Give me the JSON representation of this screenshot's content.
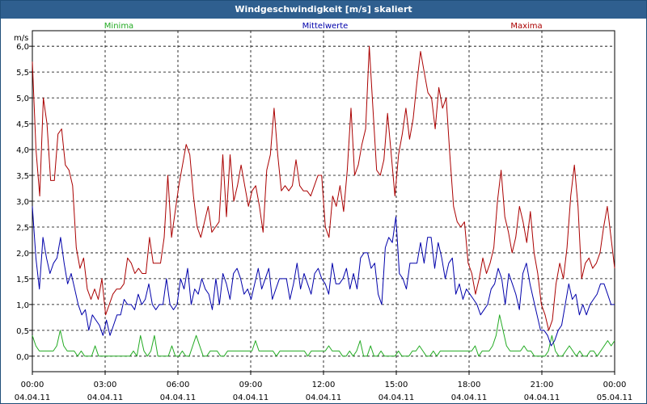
{
  "window": {
    "title": "Windgeschwindigkeit [m/s] skaliert"
  },
  "chart_data": {
    "type": "line",
    "title": "Windgeschwindigkeit [m/s] skaliert",
    "ylabel": "m/s",
    "ylim": [
      -0.3,
      6.3
    ],
    "xlim": [
      0,
      24
    ],
    "y_ticks": [
      "0,0",
      "0,5",
      "1,0",
      "1,5",
      "2,0",
      "2,5",
      "3,0",
      "3,5",
      "4,0",
      "4,5",
      "5,0",
      "5,5",
      "6,0"
    ],
    "x_ticks": [
      {
        "time": "00:00",
        "date": "04.04.11"
      },
      {
        "time": "03:00",
        "date": "04.04.11"
      },
      {
        "time": "06:00",
        "date": "04.04.11"
      },
      {
        "time": "09:00",
        "date": "04.04.11"
      },
      {
        "time": "12:00",
        "date": "04.04.11"
      },
      {
        "time": "15:00",
        "date": "04.04.11"
      },
      {
        "time": "18:00",
        "date": "04.04.11"
      },
      {
        "time": "21:00",
        "date": "04.04.11"
      },
      {
        "time": "00:00",
        "date": "05.04.11"
      }
    ],
    "grid": true,
    "x_step_hours": 0.16667,
    "series": [
      {
        "name": "Minima",
        "color": "#22aa22",
        "values": [
          0.4,
          0.2,
          0.1,
          0.1,
          0.1,
          0.1,
          0.1,
          0.2,
          0.5,
          0.2,
          0.1,
          0.1,
          0.1,
          0.0,
          0.1,
          0.0,
          0.0,
          0.0,
          0.2,
          0.0,
          0.0,
          0.0,
          0.0,
          0.0,
          0.0,
          0.0,
          0.0,
          0.0,
          0.0,
          0.1,
          0.0,
          0.4,
          0.1,
          0.0,
          0.1,
          0.4,
          0.0,
          0.0,
          0.0,
          0.0,
          0.2,
          0.0,
          0.0,
          0.1,
          0.0,
          0.0,
          0.2,
          0.4,
          0.2,
          0.0,
          0.0,
          0.1,
          0.1,
          0.1,
          0.0,
          0.0,
          0.1,
          0.1,
          0.1,
          0.1,
          0.1,
          0.1,
          0.1,
          0.1,
          0.3,
          0.1,
          0.1,
          0.1,
          0.1,
          0.1,
          0.0,
          0.1,
          0.1,
          0.1,
          0.1,
          0.1,
          0.1,
          0.1,
          0.1,
          0.0,
          0.1,
          0.1,
          0.1,
          0.1,
          0.1,
          0.2,
          0.1,
          0.1,
          0.1,
          0.0,
          0.0,
          0.1,
          0.0,
          0.1,
          0.3,
          0.0,
          0.0,
          0.2,
          0.0,
          0.0,
          0.1,
          0.0,
          0.0,
          0.0,
          0.0,
          0.1,
          0.0,
          0.0,
          0.0,
          0.1,
          0.1,
          0.2,
          0.1,
          0.0,
          0.0,
          0.1,
          0.0,
          0.1,
          0.1,
          0.1,
          0.1,
          0.1,
          0.1,
          0.1,
          0.1,
          0.1,
          0.1,
          0.2,
          0.0,
          0.1,
          0.1,
          0.1,
          0.2,
          0.4,
          0.8,
          0.5,
          0.2,
          0.1,
          0.1,
          0.1,
          0.1,
          0.2,
          0.1,
          0.1,
          0.0,
          0.0,
          0.0,
          0.0,
          0.1,
          0.4,
          0.1,
          0.0,
          0.0,
          0.1,
          0.2,
          0.1,
          0.0,
          0.1,
          0.0,
          0.0,
          0.1,
          0.1,
          0.0,
          0.1,
          0.2,
          0.3,
          0.2,
          0.3
        ]
      },
      {
        "name": "Mittelwerte",
        "color": "#0000aa",
        "values": [
          2.9,
          1.9,
          1.3,
          2.3,
          1.9,
          1.6,
          1.8,
          1.9,
          2.3,
          1.8,
          1.4,
          1.6,
          1.3,
          1.0,
          0.8,
          0.9,
          0.5,
          0.8,
          0.7,
          0.6,
          0.4,
          0.7,
          0.4,
          0.6,
          0.8,
          0.8,
          1.1,
          1.0,
          1.0,
          0.9,
          1.2,
          1.0,
          1.1,
          1.4,
          1.0,
          0.9,
          1.0,
          1.0,
          1.5,
          1.0,
          0.9,
          1.0,
          1.5,
          1.3,
          1.7,
          1.0,
          1.3,
          1.2,
          1.5,
          1.3,
          1.2,
          0.9,
          1.5,
          1.0,
          1.6,
          1.4,
          1.1,
          1.6,
          1.7,
          1.5,
          1.2,
          1.3,
          1.1,
          1.4,
          1.7,
          1.3,
          1.5,
          1.7,
          1.1,
          1.3,
          1.5,
          1.5,
          1.5,
          1.1,
          1.4,
          1.8,
          1.3,
          1.6,
          1.4,
          1.2,
          1.6,
          1.7,
          1.5,
          1.4,
          1.2,
          1.8,
          1.4,
          1.4,
          1.5,
          1.7,
          1.3,
          1.6,
          1.3,
          1.9,
          2.0,
          2.0,
          1.7,
          1.8,
          1.2,
          1.0,
          2.1,
          2.3,
          2.2,
          2.7,
          1.6,
          1.5,
          1.3,
          1.8,
          1.8,
          1.8,
          2.2,
          1.8,
          2.3,
          2.3,
          1.7,
          2.2,
          1.9,
          1.5,
          1.8,
          1.9,
          1.2,
          1.4,
          1.1,
          1.3,
          1.2,
          1.1,
          1.0,
          0.8,
          0.9,
          1.0,
          1.3,
          1.4,
          1.7,
          1.5,
          1.0,
          1.6,
          1.4,
          1.2,
          0.9,
          1.6,
          1.8,
          1.4,
          1.1,
          0.8,
          0.5,
          0.5,
          0.4,
          0.2,
          0.3,
          0.5,
          0.6,
          1.0,
          1.4,
          1.1,
          1.2,
          0.8,
          1.0,
          0.8,
          1.0,
          1.1,
          1.2,
          1.4,
          1.4,
          1.2,
          1.0,
          1.0
        ]
      },
      {
        "name": "Maxima",
        "color": "#aa0000",
        "values": [
          5.7,
          4.0,
          3.1,
          5.0,
          4.5,
          3.4,
          3.4,
          4.3,
          4.4,
          3.7,
          3.6,
          3.3,
          2.1,
          1.7,
          1.9,
          1.3,
          1.1,
          1.3,
          1.1,
          1.5,
          0.8,
          1.0,
          1.2,
          1.3,
          1.3,
          1.4,
          1.9,
          1.8,
          1.6,
          1.7,
          1.6,
          1.6,
          2.3,
          1.8,
          1.8,
          1.8,
          2.3,
          3.5,
          2.3,
          2.8,
          3.3,
          3.7,
          4.1,
          3.9,
          3.1,
          2.5,
          2.3,
          2.6,
          2.9,
          2.4,
          2.5,
          2.6,
          3.9,
          2.7,
          3.9,
          3.0,
          3.3,
          3.7,
          3.3,
          2.9,
          3.2,
          3.3,
          2.9,
          2.4,
          3.6,
          3.9,
          4.8,
          3.9,
          3.2,
          3.3,
          3.2,
          3.3,
          3.8,
          3.3,
          3.2,
          3.2,
          3.1,
          3.3,
          3.5,
          3.5,
          2.5,
          2.3,
          3.1,
          2.9,
          3.3,
          2.8,
          3.6,
          4.8,
          3.5,
          3.7,
          4.1,
          4.4,
          6.0,
          4.8,
          3.6,
          3.5,
          3.8,
          4.7,
          3.9,
          3.1,
          3.9,
          4.3,
          4.8,
          4.2,
          4.6,
          5.3,
          5.9,
          5.5,
          5.1,
          5.0,
          4.4,
          5.2,
          4.8,
          5.0,
          3.9,
          2.9,
          2.6,
          2.5,
          2.6,
          1.8,
          1.6,
          1.2,
          1.5,
          1.9,
          1.6,
          1.8,
          2.1,
          3.0,
          3.6,
          2.7,
          2.4,
          2.0,
          2.3,
          2.9,
          2.6,
          2.2,
          2.8,
          2.0,
          1.6,
          1.0,
          0.8,
          0.5,
          0.7,
          1.4,
          1.8,
          1.5,
          2.1,
          3.1,
          3.7,
          2.9,
          1.5,
          1.8,
          1.9,
          1.7,
          1.8,
          2.0,
          2.5,
          2.9,
          2.3,
          1.7
        ]
      }
    ]
  }
}
